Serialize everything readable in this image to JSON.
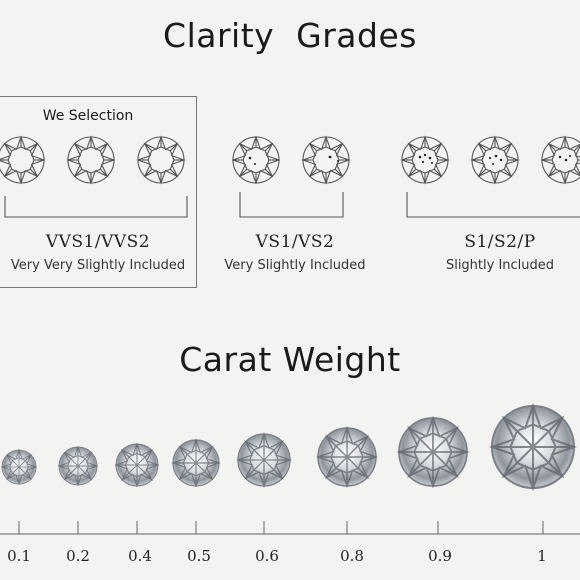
{
  "clarity": {
    "title": "Clarity  Grades",
    "selection_label": "We Selection",
    "groups": [
      {
        "grade": "VVS1/VVS2",
        "description": "Very Very Slightly Included"
      },
      {
        "grade": "VS1/VS2",
        "description": "Very Slightly Included"
      },
      {
        "grade": "S1/S2/P",
        "description": "Slightly Included"
      }
    ]
  },
  "carat": {
    "title": "Carat Weight",
    "weights": [
      "0.1",
      "0.2",
      "0.4",
      "0.5",
      "0.6",
      "0.8",
      "0.9",
      "1"
    ]
  }
}
